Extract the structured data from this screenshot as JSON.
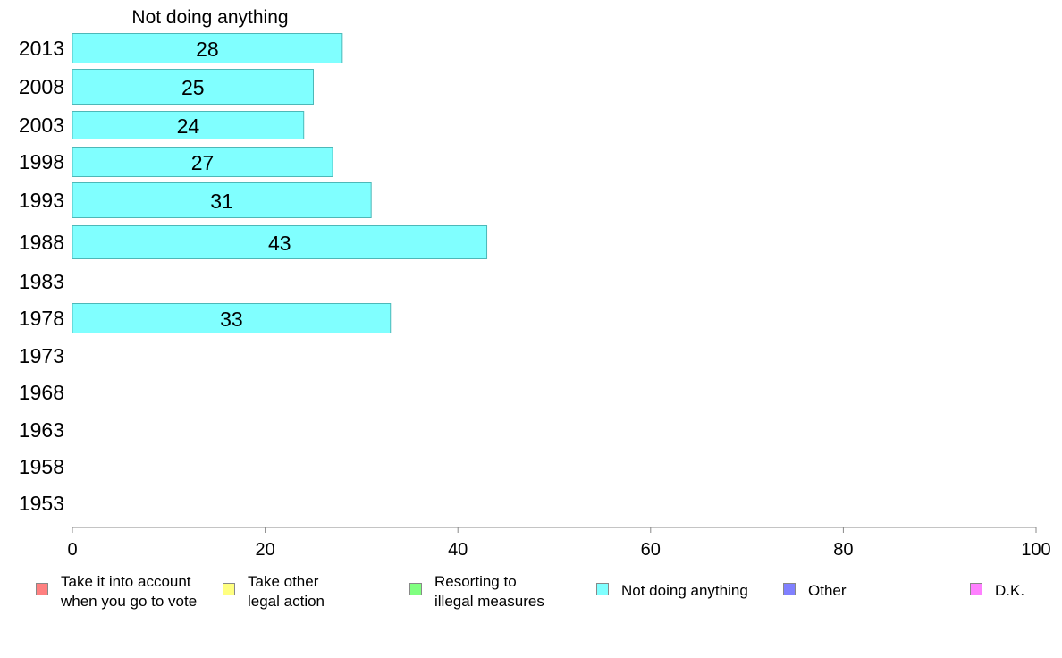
{
  "chart_data": {
    "type": "bar",
    "orientation": "horizontal",
    "title": "Not doing anything",
    "categories": [
      "2013",
      "2008",
      "2003",
      "1998",
      "1993",
      "1988",
      "1983",
      "1978",
      "1973",
      "1968",
      "1963",
      "1958",
      "1953"
    ],
    "series": [
      {
        "name": "Not doing anything",
        "color": "#80ffff",
        "values": [
          28,
          25,
          24,
          27,
          31,
          43,
          null,
          33,
          null,
          null,
          null,
          null,
          null
        ]
      }
    ],
    "xlim": [
      0,
      100
    ],
    "xticks": [
      0,
      20,
      40,
      60,
      80,
      100
    ],
    "grid": false,
    "legend_position": "bottom"
  },
  "legend": [
    {
      "label": "Take it into account\nwhen you go to vote",
      "color": "#ff8080"
    },
    {
      "label": "Take other\nlegal action",
      "color": "#ffff80"
    },
    {
      "label": "Resorting to\nillegal measures",
      "color": "#80ff80"
    },
    {
      "label": "Not doing anything",
      "color": "#80ffff"
    },
    {
      "label": "Other",
      "color": "#8080ff"
    },
    {
      "label": "D.K.",
      "color": "#ff80ff"
    }
  ]
}
